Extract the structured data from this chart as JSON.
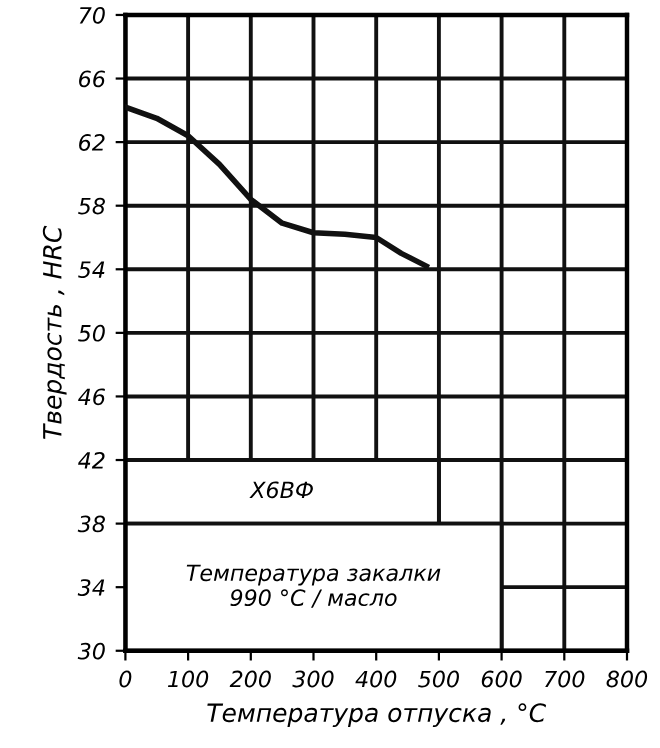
{
  "chart_data": {
    "type": "line",
    "xlabel": "Температура отпуска , °С",
    "ylabel": "Твердость , HRC",
    "x": [
      0,
      50,
      100,
      150,
      200,
      250,
      300,
      350,
      400,
      440,
      480
    ],
    "series": [
      {
        "color": "#111111",
        "values": [
          64.2,
          63.5,
          62.4,
          60.6,
          58.4,
          56.9,
          56.3,
          56.2,
          56.0,
          55.0,
          54.2
        ]
      }
    ],
    "xlim": [
      0,
      800
    ],
    "ylim": [
      30,
      70
    ],
    "xticks": [
      0,
      100,
      200,
      300,
      400,
      500,
      600,
      700,
      800
    ],
    "yticks": [
      30,
      34,
      38,
      42,
      46,
      50,
      54,
      58,
      62,
      66,
      70
    ],
    "grid": true,
    "marker": "none",
    "line_style": "solid",
    "annotations": [
      "Х6ВФ",
      "Температура закалки\n990 °С / масло"
    ]
  }
}
